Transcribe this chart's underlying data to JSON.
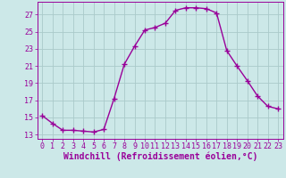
{
  "x": [
    0,
    1,
    2,
    3,
    4,
    5,
    6,
    7,
    8,
    9,
    10,
    11,
    12,
    13,
    14,
    15,
    16,
    17,
    18,
    19,
    20,
    21,
    22,
    23
  ],
  "y": [
    15.2,
    14.3,
    13.5,
    13.5,
    13.4,
    13.3,
    13.6,
    17.2,
    21.2,
    23.3,
    25.2,
    25.5,
    26.0,
    27.5,
    27.8,
    27.8,
    27.7,
    27.2,
    22.8,
    21.0,
    19.3,
    17.5,
    16.3,
    16.0
  ],
  "line_color": "#990099",
  "marker": "+",
  "marker_size": 4,
  "marker_linewidth": 1.0,
  "linewidth": 1.0,
  "bg_color": "#cce8e8",
  "grid_color": "#aacaca",
  "xlabel": "Windchill (Refroidissement éolien,°C)",
  "ylim": [
    12.5,
    28.5
  ],
  "yticks": [
    13,
    15,
    17,
    19,
    21,
    23,
    25,
    27
  ],
  "xlim": [
    -0.5,
    23.5
  ],
  "xticks": [
    0,
    1,
    2,
    3,
    4,
    5,
    6,
    7,
    8,
    9,
    10,
    11,
    12,
    13,
    14,
    15,
    16,
    17,
    18,
    19,
    20,
    21,
    22,
    23
  ],
  "tick_fontsize": 6.0,
  "label_fontsize": 7.0
}
